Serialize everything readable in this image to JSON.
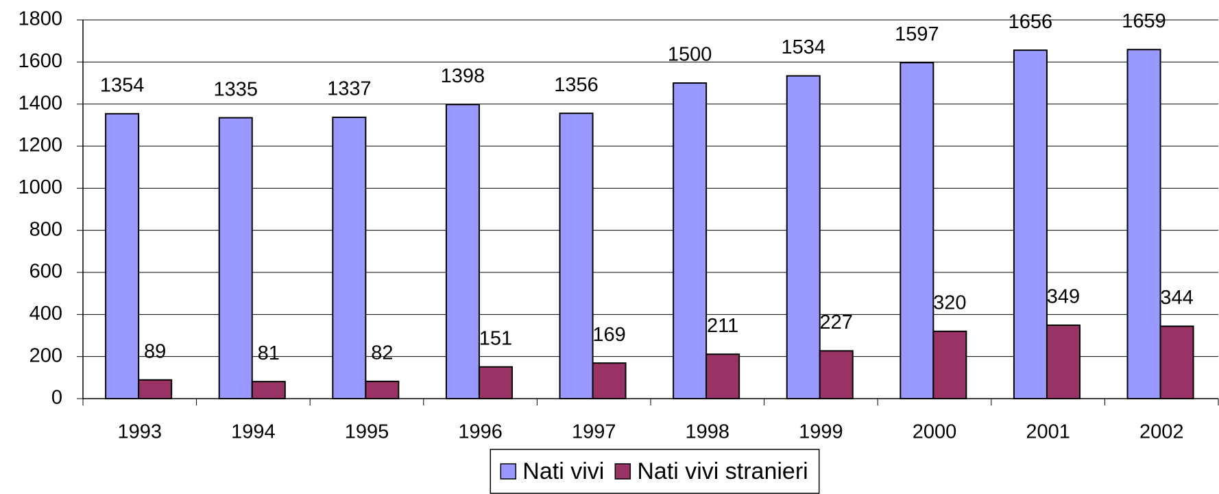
{
  "chart_data": {
    "type": "bar",
    "categories": [
      "1993",
      "1994",
      "1995",
      "1996",
      "1997",
      "1998",
      "1999",
      "2000",
      "2001",
      "2002"
    ],
    "series": [
      {
        "name": "Nati vivi",
        "color": "#9999ff",
        "values": [
          1354,
          1335,
          1337,
          1398,
          1356,
          1500,
          1534,
          1597,
          1656,
          1659
        ]
      },
      {
        "name": "Nati vivi stranieri",
        "color": "#993366",
        "values": [
          89,
          81,
          82,
          151,
          169,
          211,
          227,
          320,
          349,
          344
        ]
      }
    ],
    "ylim": [
      0,
      1800
    ],
    "yticks": [
      0,
      200,
      400,
      600,
      800,
      1000,
      1200,
      1400,
      1600,
      1800
    ],
    "grid": true,
    "legend": "bottom"
  }
}
